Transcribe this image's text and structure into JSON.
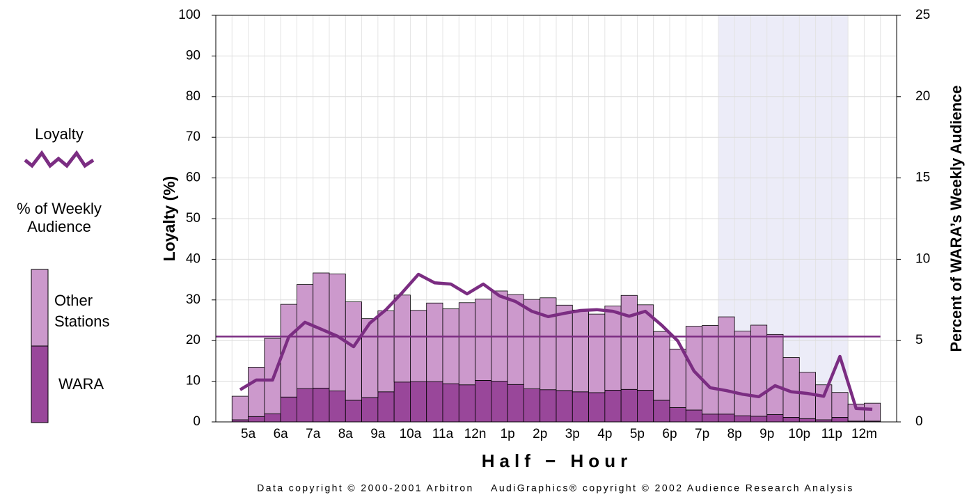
{
  "chart_data": {
    "type": "bar",
    "x_label": "Half − Hour",
    "y_label": "Loyalty (%)",
    "y2_label": "Percent of WARA’s Weekly Audience",
    "footer": "Data copyright © 2000-2001 Arbitron    AudiGraphics® copyright © 2002 Audience Research Analysis",
    "legend_heading": "% of Weekly Audience",
    "categories": [
      "5a",
      null,
      "6a",
      null,
      "7a",
      null,
      "8a",
      null,
      "9a",
      null,
      "10a",
      null,
      "11a",
      null,
      "12n",
      null,
      "1p",
      null,
      "2p",
      null,
      "3p",
      null,
      "4p",
      null,
      "5p",
      null,
      "6p",
      null,
      "7p",
      null,
      "8p",
      null,
      "9p",
      null,
      "10p",
      null,
      "11p",
      null,
      "12m",
      null
    ],
    "series": [
      {
        "name": "WARA",
        "type": "bar",
        "axis": "y2",
        "color": "#99479a",
        "values": [
          0.13,
          0.33,
          0.5,
          1.53,
          2.05,
          2.08,
          1.9,
          1.33,
          1.5,
          1.85,
          2.45,
          2.48,
          2.48,
          2.35,
          2.28,
          2.55,
          2.5,
          2.3,
          2.03,
          1.98,
          1.93,
          1.85,
          1.8,
          1.95,
          2.0,
          1.95,
          1.33,
          0.88,
          0.73,
          0.48,
          0.48,
          0.38,
          0.35,
          0.45,
          0.28,
          0.2,
          0.13,
          0.28,
          0.05,
          0.05
        ]
      },
      {
        "name": "Other Stations",
        "type": "bar",
        "axis": "y2",
        "color": "#cc99cc",
        "values": [
          1.45,
          3.03,
          4.63,
          5.7,
          6.4,
          7.08,
          7.2,
          6.05,
          4.85,
          4.98,
          5.35,
          4.38,
          4.83,
          4.6,
          5.05,
          5.0,
          5.55,
          5.53,
          5.5,
          5.65,
          5.25,
          5.03,
          4.83,
          5.18,
          5.78,
          5.25,
          4.23,
          3.6,
          5.15,
          5.45,
          5.98,
          5.2,
          5.6,
          4.93,
          3.68,
          2.85,
          2.15,
          1.53,
          1.05,
          1.1
        ]
      },
      {
        "name": "Loyalty",
        "type": "line",
        "axis": "y",
        "color": "#7b2d82",
        "values": [
          7.9,
          10.3,
          10.3,
          20.9,
          24.5,
          22.8,
          21.1,
          18.5,
          24.3,
          27.6,
          31.8,
          36.3,
          34.2,
          33.9,
          31.5,
          33.9,
          31.0,
          29.6,
          27.2,
          25.9,
          26.7,
          27.4,
          27.6,
          27.2,
          26.0,
          27.2,
          23.8,
          19.9,
          12.5,
          8.4,
          7.7,
          6.8,
          6.2,
          8.9,
          7.4,
          7.0,
          6.3,
          16.1,
          3.3,
          3.1
        ]
      }
    ],
    "average_line": 21,
    "highlight": {
      "from": 30,
      "to": 37,
      "color": "#ececf8"
    },
    "ylim": [
      0,
      100
    ],
    "yticks": [
      0,
      10,
      20,
      30,
      40,
      50,
      60,
      70,
      80,
      90,
      100
    ],
    "y2lim": [
      0,
      25
    ],
    "y2ticks": [
      0,
      5,
      10,
      15,
      20,
      25
    ],
    "grid": true
  }
}
